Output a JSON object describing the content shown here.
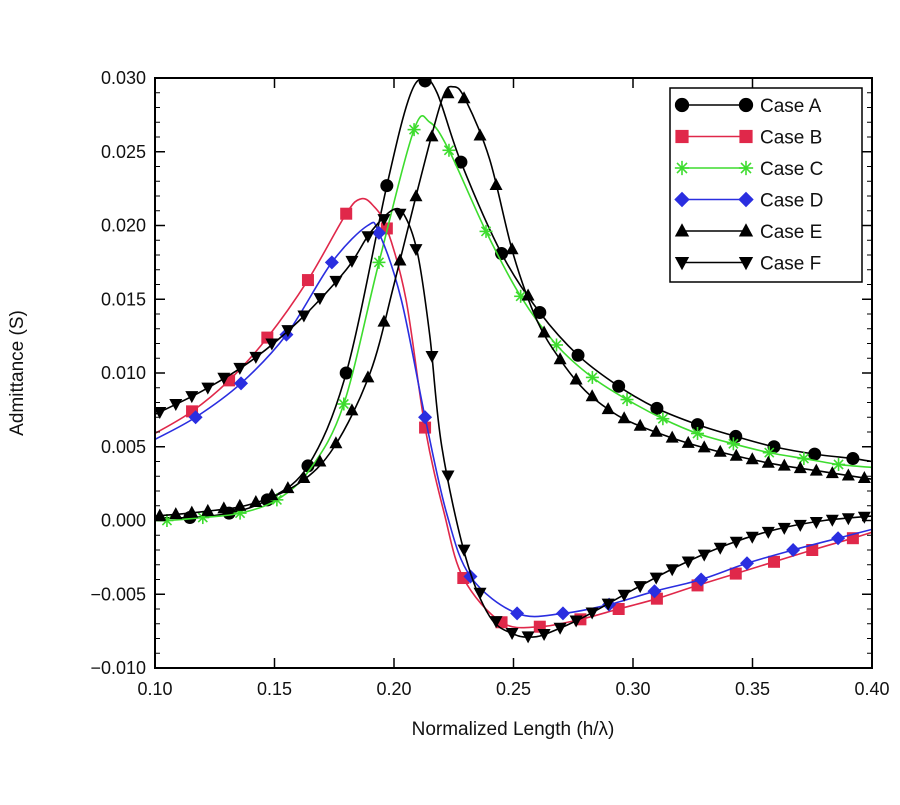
{
  "chart_data": {
    "type": "line",
    "title": "",
    "xlabel": "Normalized Length (h/λ)",
    "ylabel": "Admittance (S)",
    "xlim": [
      0.1,
      0.4
    ],
    "ylim": [
      -0.01,
      0.03
    ],
    "xticks": [
      0.1,
      0.15,
      0.2,
      0.25,
      0.3,
      0.35,
      0.4
    ],
    "xtick_labels": [
      "0.10",
      "0.15",
      "0.20",
      "0.25",
      "0.30",
      "0.35",
      "0.40"
    ],
    "yticks": [
      -0.01,
      -0.005,
      0.0,
      0.005,
      0.01,
      0.015,
      0.02,
      0.025,
      0.03
    ],
    "ytick_labels": [
      "−0.010",
      "−0.005",
      "0.000",
      "0.005",
      "0.010",
      "0.015",
      "0.020",
      "0.025",
      "0.030"
    ],
    "grid": false,
    "legend_placement": "top-right",
    "series": [
      {
        "name": "Case A",
        "color": "#000000",
        "marker": "circle",
        "line": [
          [
            0.1,
            0.0002
          ],
          [
            0.1146,
            0.0002
          ],
          [
            0.131,
            0.0005
          ],
          [
            0.147,
            0.0014
          ],
          [
            0.164,
            0.0037
          ],
          [
            0.18,
            0.01
          ],
          [
            0.197,
            0.0227
          ],
          [
            0.206,
            0.0285
          ],
          [
            0.212,
            0.03
          ],
          [
            0.218,
            0.029
          ],
          [
            0.228,
            0.0243
          ],
          [
            0.245,
            0.0181
          ],
          [
            0.261,
            0.0141
          ],
          [
            0.277,
            0.0112
          ],
          [
            0.294,
            0.0091
          ],
          [
            0.31,
            0.0076
          ],
          [
            0.327,
            0.0065
          ],
          [
            0.343,
            0.0057
          ],
          [
            0.359,
            0.005
          ],
          [
            0.376,
            0.0045
          ],
          [
            0.392,
            0.0042
          ],
          [
            0.4,
            0.004
          ]
        ],
        "markers": [
          [
            0.1146,
            0.0002
          ],
          [
            0.131,
            0.0005
          ],
          [
            0.147,
            0.0014
          ],
          [
            0.164,
            0.0037
          ],
          [
            0.18,
            0.01
          ],
          [
            0.197,
            0.0227
          ],
          [
            0.213,
            0.0298
          ],
          [
            0.228,
            0.0243
          ],
          [
            0.245,
            0.0181
          ],
          [
            0.261,
            0.0141
          ],
          [
            0.277,
            0.0112
          ],
          [
            0.294,
            0.0091
          ],
          [
            0.31,
            0.0076
          ],
          [
            0.327,
            0.0065
          ],
          [
            0.343,
            0.0057
          ],
          [
            0.359,
            0.005
          ],
          [
            0.376,
            0.0045
          ],
          [
            0.392,
            0.0042
          ]
        ]
      },
      {
        "name": "Case B",
        "color": "#e0284a",
        "marker": "square",
        "line": [
          [
            0.1,
            0.0059
          ],
          [
            0.1155,
            0.0074
          ],
          [
            0.131,
            0.0095
          ],
          [
            0.147,
            0.0124
          ],
          [
            0.164,
            0.0163
          ],
          [
            0.18,
            0.0208
          ],
          [
            0.186,
            0.0218
          ],
          [
            0.191,
            0.0214
          ],
          [
            0.197,
            0.0198
          ],
          [
            0.205,
            0.015
          ],
          [
            0.213,
            0.0063
          ],
          [
            0.221,
            0.0005
          ],
          [
            0.229,
            -0.0039
          ],
          [
            0.245,
            -0.0069
          ],
          [
            0.261,
            -0.0072
          ],
          [
            0.278,
            -0.0067
          ],
          [
            0.294,
            -0.006
          ],
          [
            0.31,
            -0.0053
          ],
          [
            0.327,
            -0.0044
          ],
          [
            0.343,
            -0.0036
          ],
          [
            0.359,
            -0.0028
          ],
          [
            0.375,
            -0.002
          ],
          [
            0.392,
            -0.0012
          ],
          [
            0.4,
            -0.0008
          ]
        ],
        "markers": [
          [
            0.1155,
            0.0074
          ],
          [
            0.131,
            0.0095
          ],
          [
            0.147,
            0.0124
          ],
          [
            0.164,
            0.0163
          ],
          [
            0.18,
            0.0208
          ],
          [
            0.197,
            0.0198
          ],
          [
            0.213,
            0.0063
          ],
          [
            0.229,
            -0.0039
          ],
          [
            0.245,
            -0.0069
          ],
          [
            0.261,
            -0.0072
          ],
          [
            0.278,
            -0.0067
          ],
          [
            0.294,
            -0.006
          ],
          [
            0.31,
            -0.0053
          ],
          [
            0.327,
            -0.0044
          ],
          [
            0.343,
            -0.0036
          ],
          [
            0.359,
            -0.0028
          ],
          [
            0.375,
            -0.002
          ],
          [
            0.392,
            -0.0012
          ]
        ]
      },
      {
        "name": "Case C",
        "color": "#3ddc2e",
        "marker": "asterisk",
        "line": [
          [
            0.1,
            0.0
          ],
          [
            0.105,
            0.0
          ],
          [
            0.12,
            0.0002
          ],
          [
            0.1356,
            0.0005
          ],
          [
            0.151,
            0.0014
          ],
          [
            0.165,
            0.0035
          ],
          [
            0.179,
            0.0079
          ],
          [
            0.1937,
            0.0175
          ],
          [
            0.2084,
            0.0265
          ],
          [
            0.215,
            0.027
          ],
          [
            0.223,
            0.0251
          ],
          [
            0.2385,
            0.0196
          ],
          [
            0.253,
            0.0152
          ],
          [
            0.268,
            0.0119
          ],
          [
            0.283,
            0.0097
          ],
          [
            0.2975,
            0.0082
          ],
          [
            0.3125,
            0.0069
          ],
          [
            0.327,
            0.0059
          ],
          [
            0.342,
            0.0052
          ],
          [
            0.357,
            0.0046
          ],
          [
            0.3715,
            0.0042
          ],
          [
            0.386,
            0.0038
          ],
          [
            0.4,
            0.0036
          ]
        ],
        "markers": [
          [
            0.105,
            0.0
          ],
          [
            0.12,
            0.0002
          ],
          [
            0.1356,
            0.0005
          ],
          [
            0.151,
            0.0014
          ],
          [
            0.179,
            0.0079
          ],
          [
            0.1937,
            0.0175
          ],
          [
            0.2084,
            0.0265
          ],
          [
            0.223,
            0.0251
          ],
          [
            0.2385,
            0.0196
          ],
          [
            0.253,
            0.0152
          ],
          [
            0.268,
            0.0119
          ],
          [
            0.283,
            0.0097
          ],
          [
            0.2975,
            0.0082
          ],
          [
            0.3125,
            0.0069
          ],
          [
            0.327,
            0.0059
          ],
          [
            0.342,
            0.0052
          ],
          [
            0.357,
            0.0046
          ],
          [
            0.3715,
            0.0042
          ],
          [
            0.386,
            0.0038
          ]
        ]
      },
      {
        "name": "Case D",
        "color": "#2a2ee0",
        "marker": "diamond",
        "line": [
          [
            0.1,
            0.0055
          ],
          [
            0.117,
            0.007
          ],
          [
            0.136,
            0.0093
          ],
          [
            0.155,
            0.0126
          ],
          [
            0.174,
            0.0175
          ],
          [
            0.189,
            0.02
          ],
          [
            0.1937,
            0.0195
          ],
          [
            0.203,
            0.015
          ],
          [
            0.213,
            0.007
          ],
          [
            0.222,
            0.0005
          ],
          [
            0.232,
            -0.0038
          ],
          [
            0.2515,
            -0.0063
          ],
          [
            0.2707,
            -0.0063
          ],
          [
            0.29,
            -0.0057
          ],
          [
            0.309,
            -0.0048
          ],
          [
            0.3285,
            -0.004
          ],
          [
            0.3477,
            -0.0029
          ],
          [
            0.367,
            -0.002
          ],
          [
            0.3858,
            -0.0012
          ],
          [
            0.4,
            -0.0006
          ]
        ],
        "markers": [
          [
            0.117,
            0.007
          ],
          [
            0.136,
            0.0093
          ],
          [
            0.155,
            0.0126
          ],
          [
            0.174,
            0.0175
          ],
          [
            0.1937,
            0.0195
          ],
          [
            0.213,
            0.007
          ],
          [
            0.232,
            -0.0038
          ],
          [
            0.2515,
            -0.0063
          ],
          [
            0.2707,
            -0.0063
          ],
          [
            0.29,
            -0.0057
          ],
          [
            0.309,
            -0.0048
          ],
          [
            0.3285,
            -0.004
          ],
          [
            0.3477,
            -0.0029
          ],
          [
            0.367,
            -0.002
          ],
          [
            0.3858,
            -0.0012
          ]
        ]
      },
      {
        "name": "Case E",
        "color": "#000000",
        "marker": "triangle-up",
        "line": [
          [
            0.1,
            0.0003
          ],
          [
            0.12,
            0.0006
          ],
          [
            0.14,
            0.0011
          ],
          [
            0.16,
            0.0025
          ],
          [
            0.175,
            0.005
          ],
          [
            0.19,
            0.01
          ],
          [
            0.2,
            0.016
          ],
          [
            0.21,
            0.0225
          ],
          [
            0.22,
            0.0285
          ],
          [
            0.225,
            0.0294
          ],
          [
            0.23,
            0.0285
          ],
          [
            0.24,
            0.0245
          ],
          [
            0.25,
            0.018
          ],
          [
            0.26,
            0.0135
          ],
          [
            0.27,
            0.0108
          ],
          [
            0.28,
            0.0088
          ],
          [
            0.29,
            0.0075
          ],
          [
            0.3,
            0.0066
          ],
          [
            0.32,
            0.0054
          ],
          [
            0.34,
            0.0045
          ],
          [
            0.36,
            0.0038
          ],
          [
            0.38,
            0.0033
          ],
          [
            0.4,
            0.0028
          ]
        ],
        "marker_step": 0.0067
      },
      {
        "name": "Case F",
        "color": "#000000",
        "marker": "triangle-down",
        "line": [
          [
            0.1,
            0.0072
          ],
          [
            0.12,
            0.0088
          ],
          [
            0.14,
            0.0108
          ],
          [
            0.16,
            0.0135
          ],
          [
            0.18,
            0.017
          ],
          [
            0.19,
            0.0195
          ],
          [
            0.2,
            0.0211
          ],
          [
            0.205,
            0.0205
          ],
          [
            0.21,
            0.018
          ],
          [
            0.215,
            0.0125
          ],
          [
            0.22,
            0.005
          ],
          [
            0.23,
            -0.0025
          ],
          [
            0.24,
            -0.0065
          ],
          [
            0.25,
            -0.0077
          ],
          [
            0.258,
            -0.0079
          ],
          [
            0.265,
            -0.0076
          ],
          [
            0.28,
            -0.0065
          ],
          [
            0.3,
            -0.0047
          ],
          [
            0.32,
            -0.003
          ],
          [
            0.34,
            -0.0016
          ],
          [
            0.36,
            -0.0006
          ],
          [
            0.38,
            0.0
          ],
          [
            0.4,
            0.0003
          ]
        ],
        "marker_step": 0.0067
      }
    ]
  }
}
